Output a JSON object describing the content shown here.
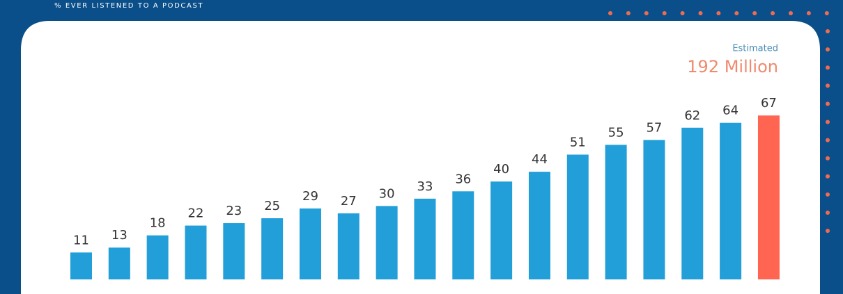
{
  "chart_data": {
    "type": "bar",
    "title": "% EVER LISTENED TO A PODCAST",
    "annotations": [
      "Estimated",
      "192 Million"
    ],
    "values": [
      11,
      13,
      18,
      22,
      23,
      25,
      29,
      27,
      30,
      33,
      36,
      40,
      44,
      51,
      55,
      57,
      62,
      64,
      67
    ],
    "colors": [
      "#229fd8",
      "#229fd8",
      "#229fd8",
      "#229fd8",
      "#229fd8",
      "#229fd8",
      "#229fd8",
      "#229fd8",
      "#229fd8",
      "#229fd8",
      "#229fd8",
      "#229fd8",
      "#229fd8",
      "#229fd8",
      "#229fd8",
      "#229fd8",
      "#229fd8",
      "#229fd8",
      "#ff6550"
    ]
  }
}
